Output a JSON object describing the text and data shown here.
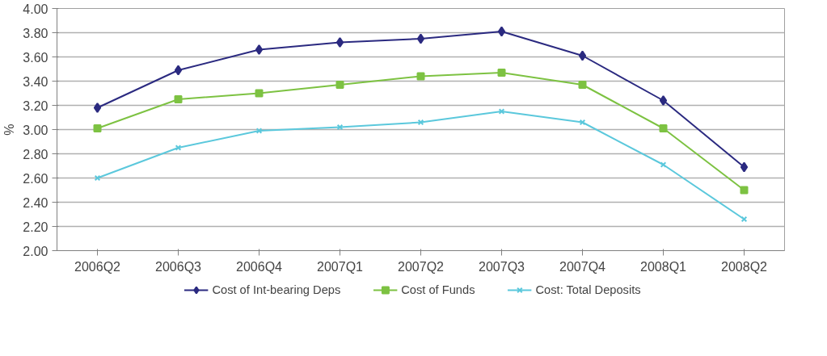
{
  "chart_data": {
    "type": "line",
    "ylabel": "%",
    "categories": [
      "2006Q2",
      "2006Q3",
      "2006Q4",
      "2007Q1",
      "2007Q2",
      "2007Q3",
      "2007Q4",
      "2008Q1",
      "2008Q2"
    ],
    "series": [
      {
        "name": "Cost of Int-bearing Deps",
        "color": "#2b2a80",
        "marker": "diamond",
        "values": [
          3.18,
          3.49,
          3.66,
          3.72,
          3.75,
          3.81,
          3.61,
          3.24,
          2.69
        ]
      },
      {
        "name": "Cost of Funds",
        "color": "#7dc242",
        "marker": "square",
        "values": [
          3.01,
          3.25,
          3.3,
          3.37,
          3.44,
          3.47,
          3.37,
          3.01,
          2.5
        ]
      },
      {
        "name": "Cost: Total Deposits",
        "color": "#5bc8dc",
        "marker": "cross",
        "values": [
          2.6,
          2.85,
          2.99,
          3.02,
          3.06,
          3.15,
          3.06,
          2.71,
          2.26
        ]
      }
    ],
    "ylim": [
      2.0,
      4.0
    ],
    "yticks": [
      {
        "value": 2.0,
        "label": "2.00"
      },
      {
        "value": 2.2,
        "label": "2.20"
      },
      {
        "value": 2.4,
        "label": "2.40"
      },
      {
        "value": 2.6,
        "label": "2.60"
      },
      {
        "value": 2.8,
        "label": "2.80"
      },
      {
        "value": 3.0,
        "label": "3.00"
      },
      {
        "value": 3.2,
        "label": "3.20"
      },
      {
        "value": 3.4,
        "label": "3.40"
      },
      {
        "value": 3.6,
        "label": "3.60"
      },
      {
        "value": 3.8,
        "label": "3.80"
      },
      {
        "value": 4.0,
        "label": "4.00"
      }
    ],
    "grid": "y",
    "legend": "bottom"
  }
}
